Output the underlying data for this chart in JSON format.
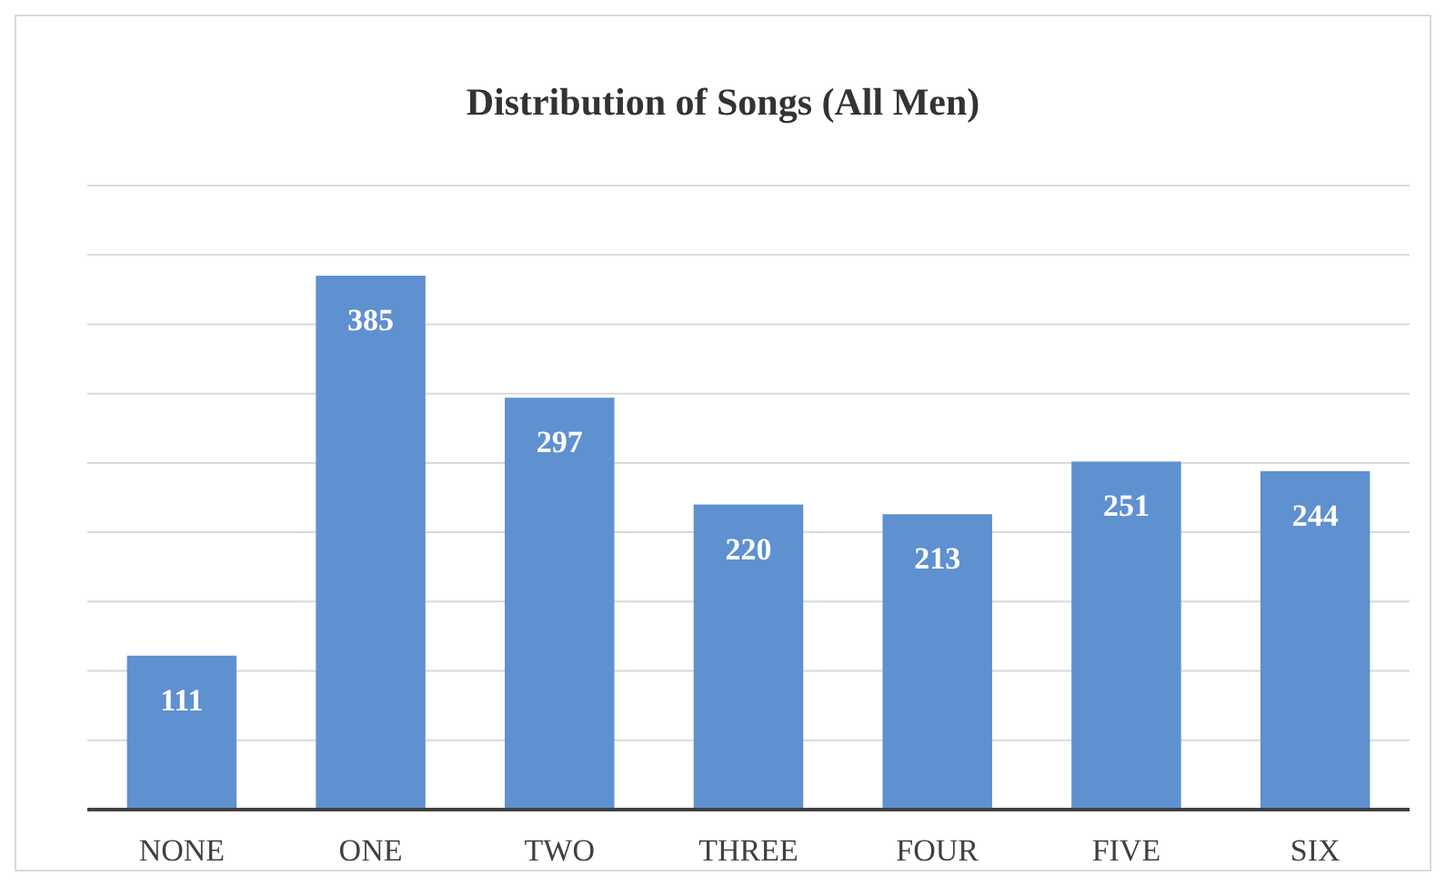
{
  "chart_data": {
    "type": "bar",
    "title": "Distribution of Songs (All Men)",
    "categories": [
      "NONE",
      "ONE",
      "TWO",
      "THREE",
      "FOUR",
      "FIVE",
      "SIX"
    ],
    "values": [
      111,
      385,
      297,
      220,
      213,
      251,
      244
    ],
    "color": "#5f90d0",
    "ylim": [
      0,
      450
    ],
    "yticks": [
      {
        "value": 0,
        "label": null
      },
      {
        "value": 50,
        "label": null
      },
      {
        "value": 100,
        "label": null
      },
      {
        "value": 150,
        "label": null
      },
      {
        "value": 200,
        "label": null
      },
      {
        "value": 250,
        "label": null
      },
      {
        "value": 300,
        "label": null
      },
      {
        "value": 350,
        "label": null
      },
      {
        "value": 400,
        "label": null
      },
      {
        "value": 450,
        "label": null
      }
    ],
    "grid": "y",
    "tick_labels": "x",
    "data_labels": true
  }
}
